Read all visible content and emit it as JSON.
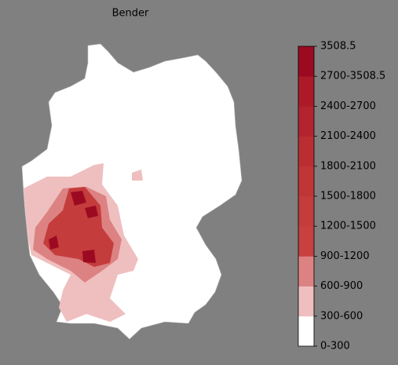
{
  "title": "Bender",
  "colorbar": {
    "labels": [
      "0-300",
      "300-600",
      "600-900",
      "900-1200",
      "1200-1500",
      "1500-1800",
      "1800-2100",
      "2100-2400",
      "2400-2700",
      "2700-3508.5",
      "3508.5"
    ],
    "colors": [
      "#ffffff",
      "#efbfbf",
      "#dc8282",
      "#c84040",
      "#c43c3c",
      "#c03636",
      "#ba2e32",
      "#b4242e",
      "#ac1a2a",
      "#9c0a22"
    ]
  }
}
